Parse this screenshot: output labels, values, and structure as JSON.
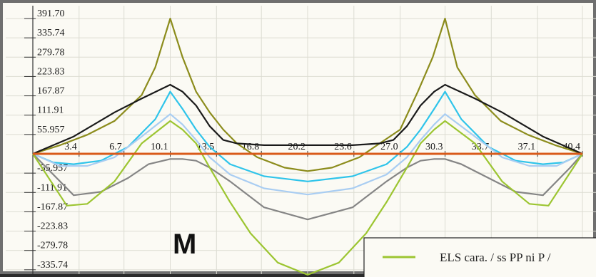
{
  "panel_label": "M",
  "chart_data": {
    "type": "line",
    "title": "",
    "xlabel": "",
    "ylabel": "",
    "grid": true,
    "xlim": [
      0,
      40.4
    ],
    "ylim": [
      -391.7,
      391.7
    ],
    "x_ticks": [
      "3.4",
      "6.7",
      "10.1",
      "13.5",
      "16.8",
      "20.2",
      "23.6",
      "27.0",
      "30.3",
      "33.7",
      "37.1",
      "40.4"
    ],
    "y_ticks": [
      "391.70",
      "335.74",
      "279.78",
      "223.83",
      "167.87",
      "111.91",
      "55.957",
      "-55.957",
      "-111.91",
      "-167.87",
      "-223.83",
      "-279.78",
      "-335.74"
    ],
    "legend": {
      "position": "bottom-right",
      "entries": [
        {
          "label": "ELS cara. / ss PP ni P /",
          "color": "#9cc531"
        }
      ]
    },
    "series": [
      {
        "color": "#8c8c1c",
        "points": [
          [
            0,
            0
          ],
          [
            2,
            25
          ],
          [
            4,
            55
          ],
          [
            6,
            95
          ],
          [
            8,
            170
          ],
          [
            9,
            250
          ],
          [
            10.1,
            391.7
          ],
          [
            11,
            280
          ],
          [
            12,
            180
          ],
          [
            13,
            120
          ],
          [
            14,
            70
          ],
          [
            15,
            30
          ],
          [
            16.5,
            -10
          ],
          [
            18.5,
            -40
          ],
          [
            20.2,
            -50
          ],
          [
            22,
            -40
          ],
          [
            24,
            -10
          ],
          [
            25.5,
            30
          ],
          [
            27,
            70
          ],
          [
            28.3,
            180
          ],
          [
            29.4,
            280
          ],
          [
            30.3,
            391.7
          ],
          [
            31.2,
            250
          ],
          [
            32.5,
            170
          ],
          [
            34.4,
            95
          ],
          [
            36.4,
            55
          ],
          [
            38.4,
            25
          ],
          [
            40.4,
            0
          ]
        ]
      },
      {
        "color": "#1a1a1a",
        "points": [
          [
            0,
            0
          ],
          [
            3,
            50
          ],
          [
            6,
            120
          ],
          [
            8,
            160
          ],
          [
            10.1,
            200
          ],
          [
            11,
            180
          ],
          [
            12,
            140
          ],
          [
            13,
            80
          ],
          [
            14,
            40
          ],
          [
            15,
            30
          ],
          [
            17,
            25
          ],
          [
            20.2,
            25
          ],
          [
            23.5,
            25
          ],
          [
            25.5,
            30
          ],
          [
            26.5,
            40
          ],
          [
            27.5,
            80
          ],
          [
            28.5,
            140
          ],
          [
            29.5,
            180
          ],
          [
            30.3,
            200
          ],
          [
            32.5,
            160
          ],
          [
            34.5,
            120
          ],
          [
            37.5,
            50
          ],
          [
            40.4,
            0
          ]
        ]
      },
      {
        "color": "#2fc4ea",
        "points": [
          [
            0,
            0
          ],
          [
            1.5,
            -25
          ],
          [
            3,
            -30
          ],
          [
            5,
            -20
          ],
          [
            7,
            20
          ],
          [
            9,
            100
          ],
          [
            10.1,
            180
          ],
          [
            11,
            130
          ],
          [
            12,
            70
          ],
          [
            13,
            20
          ],
          [
            14.5,
            -30
          ],
          [
            17,
            -65
          ],
          [
            20.2,
            -80
          ],
          [
            23.5,
            -65
          ],
          [
            26,
            -30
          ],
          [
            27.5,
            20
          ],
          [
            28.5,
            70
          ],
          [
            29.5,
            130
          ],
          [
            30.3,
            180
          ],
          [
            31.5,
            100
          ],
          [
            33.5,
            20
          ],
          [
            35.5,
            -20
          ],
          [
            37.5,
            -30
          ],
          [
            39,
            -25
          ],
          [
            40.4,
            0
          ]
        ]
      },
      {
        "color": "#a9cdf2",
        "points": [
          [
            0,
            0
          ],
          [
            2,
            -35
          ],
          [
            4,
            -35
          ],
          [
            6,
            -10
          ],
          [
            8,
            50
          ],
          [
            10.1,
            115
          ],
          [
            11,
            85
          ],
          [
            12,
            40
          ],
          [
            13,
            -10
          ],
          [
            14.5,
            -60
          ],
          [
            17,
            -100
          ],
          [
            20.2,
            -118
          ],
          [
            23.5,
            -100
          ],
          [
            26,
            -60
          ],
          [
            27.5,
            -10
          ],
          [
            28.5,
            40
          ],
          [
            29.5,
            85
          ],
          [
            30.3,
            115
          ],
          [
            32.5,
            50
          ],
          [
            34.5,
            -10
          ],
          [
            36.5,
            -35
          ],
          [
            38.5,
            -35
          ],
          [
            40.4,
            0
          ]
        ]
      },
      {
        "color": "#858585",
        "points": [
          [
            0,
            0
          ],
          [
            1,
            -40
          ],
          [
            3,
            -120
          ],
          [
            5,
            -110
          ],
          [
            7,
            -70
          ],
          [
            8.5,
            -30
          ],
          [
            10.1,
            -15
          ],
          [
            11,
            -15
          ],
          [
            12,
            -20
          ],
          [
            13,
            -40
          ],
          [
            14.5,
            -80
          ],
          [
            17,
            -155
          ],
          [
            20.2,
            -190
          ],
          [
            23.5,
            -155
          ],
          [
            26,
            -80
          ],
          [
            27.5,
            -40
          ],
          [
            28.5,
            -20
          ],
          [
            29.5,
            -15
          ],
          [
            30.3,
            -15
          ],
          [
            31.5,
            -30
          ],
          [
            33.5,
            -70
          ],
          [
            35.5,
            -110
          ],
          [
            37.5,
            -120
          ],
          [
            39.5,
            -40
          ],
          [
            40.4,
            0
          ]
        ]
      },
      {
        "color": "#9cc531",
        "points": [
          [
            0,
            0
          ],
          [
            1,
            -60
          ],
          [
            2.5,
            -150
          ],
          [
            4,
            -145
          ],
          [
            6,
            -80
          ],
          [
            8,
            30
          ],
          [
            10.1,
            95
          ],
          [
            11,
            70
          ],
          [
            12,
            30
          ],
          [
            13,
            -40
          ],
          [
            14.5,
            -140
          ],
          [
            16,
            -230
          ],
          [
            18,
            -315
          ],
          [
            20.2,
            -350
          ],
          [
            22.5,
            -315
          ],
          [
            24.5,
            -230
          ],
          [
            26,
            -140
          ],
          [
            27.5,
            -40
          ],
          [
            28.5,
            30
          ],
          [
            29.5,
            70
          ],
          [
            30.3,
            95
          ],
          [
            32.5,
            30
          ],
          [
            34.5,
            -80
          ],
          [
            36.5,
            -145
          ],
          [
            37.9,
            -150
          ],
          [
            39.4,
            -60
          ],
          [
            40.4,
            0
          ]
        ]
      },
      {
        "color": "#d95a1a",
        "points": [
          [
            0,
            0
          ],
          [
            40.4,
            0
          ]
        ]
      }
    ]
  }
}
